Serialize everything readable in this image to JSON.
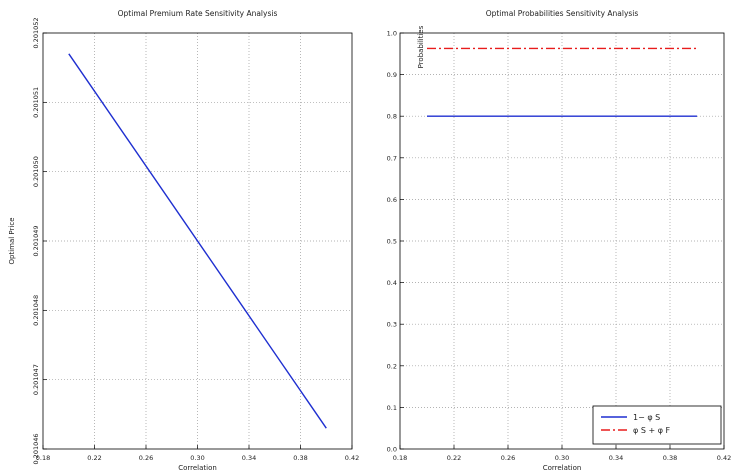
{
  "chart_data": [
    {
      "type": "line",
      "title": "Optimal Premium Rate Sensitivity Analysis",
      "xlabel": "Correlation",
      "ylabel": "Optimal Price",
      "xlim": [
        0.18,
        0.42
      ],
      "ylim": [
        0.201046,
        0.201052
      ],
      "x_ticks": [
        0.18,
        0.22,
        0.26,
        0.3,
        0.34,
        0.38,
        0.42
      ],
      "x_tick_labels": [
        "0.18",
        "0.22",
        "0.26",
        "0.30",
        "0.34",
        "0.38",
        "0.42"
      ],
      "y_ticks": [
        0.201046,
        0.201047,
        0.201048,
        0.201049,
        0.20105,
        0.201051,
        0.201052
      ],
      "y_tick_labels": [
        "0.201046",
        "0.201047",
        "0.201048",
        "0.201049",
        "0.201050",
        "0.201051",
        "0.201052"
      ],
      "grid": true,
      "series": [
        {
          "name": "",
          "color": "#1f2fd0",
          "style": "solid",
          "x": [
            0.2,
            0.4
          ],
          "y": [
            0.2010517,
            0.2010463
          ]
        }
      ]
    },
    {
      "type": "line",
      "title": "Optimal Probabilities Sensitivity Analysis",
      "xlabel": "Correlation",
      "ylabel": "Probabilities",
      "xlim": [
        0.18,
        0.42
      ],
      "ylim": [
        0.0,
        1.0
      ],
      "x_ticks": [
        0.18,
        0.22,
        0.26,
        0.3,
        0.34,
        0.38,
        0.42
      ],
      "x_tick_labels": [
        "0.18",
        "0.22",
        "0.26",
        "0.30",
        "0.34",
        "0.38",
        "0.42"
      ],
      "y_ticks": [
        0.0,
        0.1,
        0.2,
        0.3,
        0.4,
        0.5,
        0.6,
        0.7,
        0.8,
        0.9,
        1.0
      ],
      "y_tick_labels": [
        "0.0",
        "0.1",
        "0.2",
        "0.3",
        "0.4",
        "0.5",
        "0.6",
        "0.7",
        "0.8",
        "0.9",
        "1.0"
      ],
      "grid": true,
      "legend_position": "bottom-right",
      "series": [
        {
          "name": "1− φ S",
          "color": "#1f2fd0",
          "style": "solid",
          "x": [
            0.2,
            0.4
          ],
          "y": [
            0.8,
            0.8
          ]
        },
        {
          "name": "φ S + φ F",
          "color": "#e81c1c",
          "style": "dashdot",
          "x": [
            0.2,
            0.4
          ],
          "y": [
            0.963,
            0.963
          ]
        }
      ]
    }
  ]
}
